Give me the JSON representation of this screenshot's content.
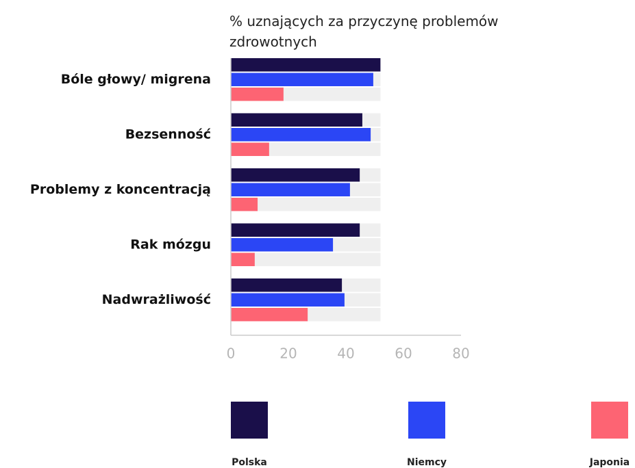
{
  "chart_data": {
    "type": "bar",
    "orientation": "horizontal",
    "title": "% uznających za przyczynę problemów zdrowotnych",
    "categories": [
      "Bóle głowy/ migrena",
      "Bezsenność",
      "Problemy z koncentracją",
      "Rak mózgu",
      "Nadwrażliwość"
    ],
    "series": [
      {
        "name": "Polska",
        "color": "#1a0f4a",
        "values": [
          52,
          45.7,
          44.8,
          44.8,
          38.6
        ]
      },
      {
        "name": "Niemcy",
        "color": "#2b46f5",
        "values": [
          49.5,
          48.6,
          41.4,
          35.5,
          39.5
        ]
      },
      {
        "name": "Japonia",
        "color": "#fd6473",
        "values": [
          18.3,
          13.3,
          9.3,
          8.3,
          26.7
        ]
      }
    ],
    "xlim": [
      0,
      80
    ],
    "xticks": [
      0,
      20,
      40,
      60,
      80
    ],
    "legend": "bottom"
  }
}
